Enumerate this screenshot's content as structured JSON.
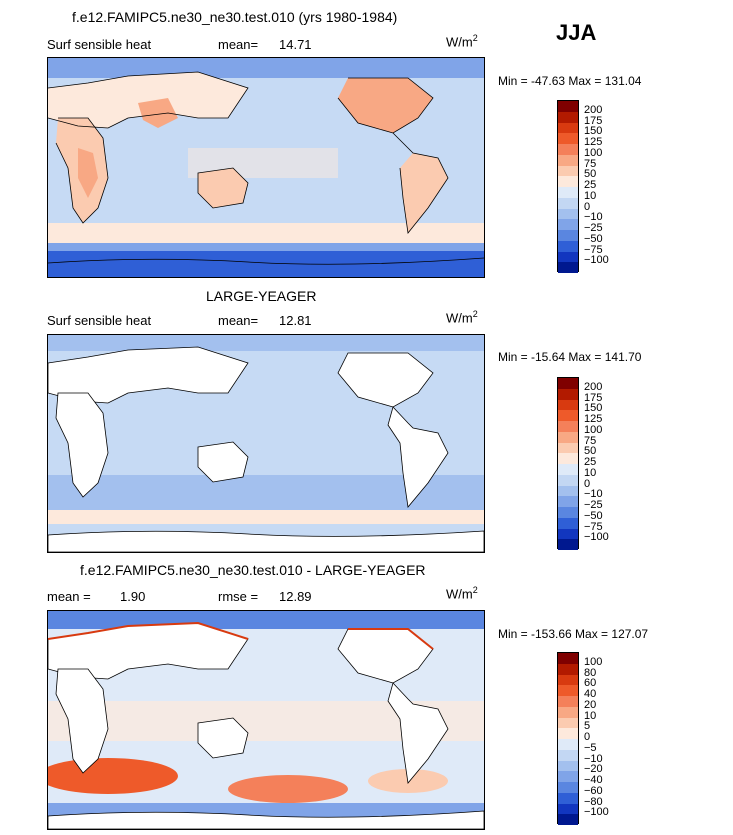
{
  "season": "JJA",
  "units_base": "W/m",
  "units_exp": "2",
  "panels": [
    {
      "title": "f.e12.FAMIPC5.ne30_ne30.test.010 (yrs 1980-1984)",
      "left_label": "Surf sensible heat",
      "stat_label": "mean=",
      "stat_value": "14.71",
      "minmax": "Min = -47.63 Max = 131.04",
      "colorbar_levels": [
        "200",
        "175",
        "150",
        "125",
        "100",
        "75",
        "50",
        "25",
        "10",
        "0",
        "-10",
        "-25",
        "-50",
        "-75",
        "-100"
      ],
      "colorbar_colors": [
        "#7f0000",
        "#b21a00",
        "#d83a10",
        "#ee5a2a",
        "#f4805a",
        "#f8a884",
        "#fbcbb0",
        "#fde9dc",
        "#dfeaf8",
        "#c3d7f3",
        "#a3c0ee",
        "#80a4e8",
        "#5a86e0",
        "#2f5fd6",
        "#1236bf",
        "#00188f"
      ],
      "map": {
        "land_default": "#c8dcf5",
        "ocean_default": "#c9dcf5"
      }
    },
    {
      "title": "LARGE-YEAGER",
      "left_label": "Surf sensible heat",
      "stat_label": "mean=",
      "stat_value": "12.81",
      "minmax": "Min = -15.64 Max = 141.70",
      "colorbar_levels": [
        "200",
        "175",
        "150",
        "125",
        "100",
        "75",
        "50",
        "25",
        "10",
        "0",
        "-10",
        "-25",
        "-50",
        "-75",
        "-100"
      ],
      "colorbar_colors": [
        "#7f0000",
        "#b21a00",
        "#d83a10",
        "#ee5a2a",
        "#f4805a",
        "#f8a884",
        "#fbcbb0",
        "#fde9dc",
        "#dfeaf8",
        "#c3d7f3",
        "#a3c0ee",
        "#80a4e8",
        "#5a86e0",
        "#2f5fd6",
        "#1236bf",
        "#00188f"
      ],
      "map": {
        "land_default": "#ffffff",
        "ocean_default": "#c9dcf5"
      }
    },
    {
      "title": "f.e12.FAMIPC5.ne30_ne30.test.010 - LARGE-YEAGER",
      "left_label": "mean =",
      "left_value": "1.90",
      "stat_label": "rmse =",
      "stat_value": "12.89",
      "minmax": "Min = -153.66 Max = 127.07",
      "colorbar_levels": [
        "100",
        "80",
        "60",
        "40",
        "20",
        "10",
        "5",
        "0",
        "-5",
        "-10",
        "-20",
        "-40",
        "-60",
        "-80",
        "-100"
      ],
      "colorbar_colors": [
        "#7f0000",
        "#b21a00",
        "#d83a10",
        "#ee5a2a",
        "#f4805a",
        "#f8a884",
        "#fbcbb0",
        "#fde9dc",
        "#dfeaf8",
        "#c3d7f3",
        "#a3c0ee",
        "#80a4e8",
        "#5a86e0",
        "#2f5fd6",
        "#1236bf",
        "#00188f"
      ],
      "map": {
        "land_default": "#ffffff",
        "ocean_default": "#dfeaf8"
      }
    }
  ]
}
